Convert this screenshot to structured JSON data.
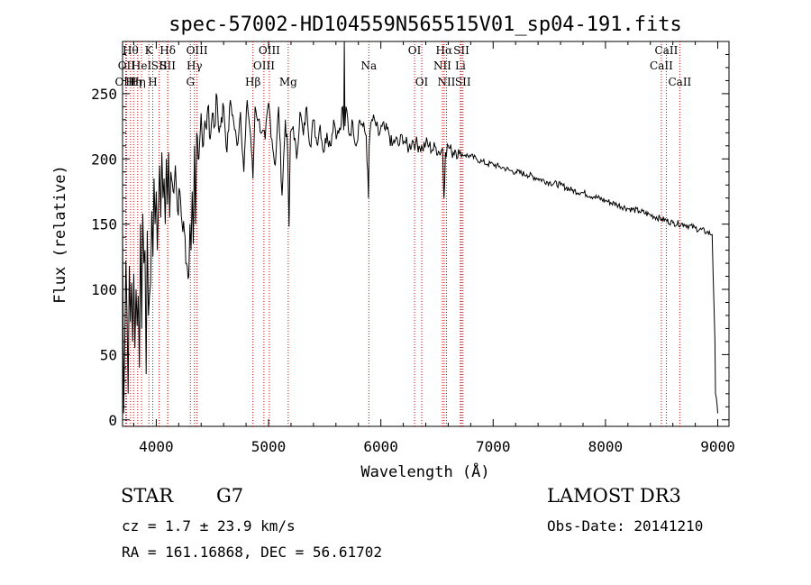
{
  "chart_data": {
    "type": "line",
    "title": "spec-57002-HD104559N565515V01_sp04-191.fits",
    "xlabel": "Wavelength (Å)",
    "ylabel": "Flux (relative)",
    "xlim": [
      3700,
      9100
    ],
    "ylim": [
      -5,
      290
    ],
    "x_ticks": [
      4000,
      5000,
      6000,
      7000,
      8000,
      9000
    ],
    "y_ticks": [
      0,
      50,
      100,
      150,
      200,
      250
    ],
    "series": [
      {
        "name": "flux",
        "x": [
          3700,
          3710,
          3720,
          3730,
          3740,
          3750,
          3760,
          3770,
          3780,
          3790,
          3800,
          3810,
          3820,
          3830,
          3840,
          3850,
          3860,
          3870,
          3880,
          3890,
          3900,
          3910,
          3920,
          3930,
          3940,
          3950,
          3960,
          3970,
          3980,
          3990,
          4000,
          4010,
          4020,
          4030,
          4040,
          4050,
          4060,
          4070,
          4080,
          4090,
          4100,
          4110,
          4120,
          4130,
          4150,
          4170,
          4190,
          4210,
          4230,
          4250,
          4270,
          4290,
          4300,
          4310,
          4320,
          4330,
          4340,
          4350,
          4360,
          4380,
          4400,
          4420,
          4440,
          4460,
          4480,
          4500,
          4520,
          4540,
          4560,
          4580,
          4600,
          4630,
          4660,
          4690,
          4720,
          4750,
          4780,
          4810,
          4840,
          4861,
          4880,
          4910,
          4940,
          4970,
          5000,
          5030,
          5060,
          5090,
          5120,
          5150,
          5170,
          5183,
          5195,
          5220,
          5250,
          5280,
          5310,
          5340,
          5370,
          5400,
          5430,
          5460,
          5490,
          5520,
          5550,
          5580,
          5610,
          5640,
          5660,
          5670,
          5675,
          5680,
          5690,
          5720,
          5750,
          5780,
          5810,
          5840,
          5870,
          5890,
          5896,
          5905,
          5920,
          5950,
          5980,
          6010,
          6040,
          6070,
          6100,
          6130,
          6160,
          6190,
          6220,
          6250,
          6280,
          6310,
          6340,
          6370,
          6400,
          6430,
          6460,
          6490,
          6520,
          6550,
          6562,
          6575,
          6600,
          6630,
          6660,
          6700,
          6750,
          6800,
          6850,
          6900,
          6950,
          7000,
          7050,
          7100,
          7150,
          7200,
          7300,
          7400,
          7500,
          7600,
          7700,
          7800,
          7900,
          8000,
          8100,
          8200,
          8300,
          8400,
          8500,
          8600,
          8700,
          8800,
          8900,
          8950,
          8975,
          8980,
          9000
        ],
        "y": [
          150,
          5,
          60,
          122,
          80,
          20,
          118,
          75,
          105,
          60,
          112,
          55,
          100,
          72,
          95,
          40,
          150,
          70,
          158,
          120,
          130,
          35,
          145,
          80,
          95,
          105,
          160,
          125,
          185,
          150,
          175,
          130,
          165,
          195,
          155,
          205,
          170,
          185,
          150,
          200,
          165,
          205,
          155,
          190,
          175,
          195,
          160,
          175,
          150,
          145,
          120,
          110,
          150,
          130,
          175,
          135,
          210,
          150,
          220,
          200,
          235,
          210,
          225,
          240,
          215,
          235,
          225,
          248,
          220,
          232,
          240,
          205,
          245,
          228,
          210,
          236,
          190,
          245,
          218,
          185,
          240,
          230,
          220,
          215,
          243,
          215,
          195,
          240,
          172,
          230,
          205,
          148,
          220,
          225,
          200,
          236,
          218,
          240,
          210,
          230,
          212,
          226,
          205,
          220,
          210,
          230,
          218,
          222,
          240,
          222,
          290,
          225,
          240,
          218,
          228,
          210,
          230,
          225,
          218,
          170,
          210,
          222,
          230,
          228,
          218,
          225,
          222,
          220,
          210,
          215,
          210,
          218,
          212,
          208,
          214,
          212,
          210,
          208,
          212,
          210,
          207,
          209,
          205,
          208,
          170,
          205,
          210,
          205,
          207,
          204,
          203,
          202,
          200,
          198,
          196,
          196,
          194,
          193,
          191,
          190,
          188,
          185,
          182,
          180,
          176,
          174,
          171,
          168,
          165,
          162,
          160,
          157,
          154,
          151,
          150,
          147,
          144,
          142,
          60,
          20,
          5
        ]
      }
    ],
    "lines": [
      {
        "w": 3728,
        "label": "OIII",
        "row": 2
      },
      {
        "w": 3735,
        "label": "OII",
        "row": 1
      },
      {
        "w": 3771,
        "label": "Hθ",
        "row": 0
      },
      {
        "w": 3798,
        "label": "Hη",
        "row": 2
      },
      {
        "w": 3835,
        "label": "Hη",
        "row": 2
      },
      {
        "w": 3869,
        "label": "HeI",
        "row": 1
      },
      {
        "w": 3934,
        "label": "K",
        "row": 0
      },
      {
        "w": 3969,
        "label": "H",
        "row": 2
      },
      {
        "w": 4026,
        "label": "SII",
        "row": 1
      },
      {
        "w": 4102,
        "label": "Hδ",
        "row": 0
      },
      {
        "w": 4102,
        "label": "SII",
        "row": 1
      },
      {
        "w": 4304,
        "label": "G",
        "row": 2
      },
      {
        "w": 4340,
        "label": "Hγ",
        "row": 1
      },
      {
        "w": 4363,
        "label": "OIII",
        "row": 0
      },
      {
        "w": 4861,
        "label": "Hβ",
        "row": 2
      },
      {
        "w": 4959,
        "label": "OIII",
        "row": 1
      },
      {
        "w": 5007,
        "label": "OIII",
        "row": 0
      },
      {
        "w": 5175,
        "label": "Mg",
        "row": 2
      },
      {
        "w": 5893,
        "label": "Na",
        "row": 1
      },
      {
        "w": 6300,
        "label": "OI",
        "row": 0
      },
      {
        "w": 6364,
        "label": "OI",
        "row": 2
      },
      {
        "w": 6548,
        "label": "NII",
        "row": 1
      },
      {
        "w": 6563,
        "label": "Hα",
        "row": 0
      },
      {
        "w": 6584,
        "label": "NII",
        "row": 2
      },
      {
        "w": 6708,
        "label": "Li",
        "row": 1
      },
      {
        "w": 6717,
        "label": "SII",
        "row": 0
      },
      {
        "w": 6731,
        "label": "SII",
        "row": 2
      },
      {
        "w": 8498,
        "label": "CaII",
        "row": 1
      },
      {
        "w": 8542,
        "label": "CaII",
        "row": 0
      },
      {
        "w": 8662,
        "label": "CaII",
        "row": 2
      }
    ],
    "annotations": {
      "object_class": "STAR",
      "subclass": "G7",
      "survey": "LAMOST DR3",
      "redshift": "cz = 1.7 ± 23.9 km/s",
      "obs_date": "Obs-Date: 20141210",
      "coords": "RA = 161.16868, DEC =  56.61702"
    },
    "colors": {
      "spectrum": "#000000",
      "line_marker": "#cc0000",
      "axes": "#000000"
    }
  }
}
